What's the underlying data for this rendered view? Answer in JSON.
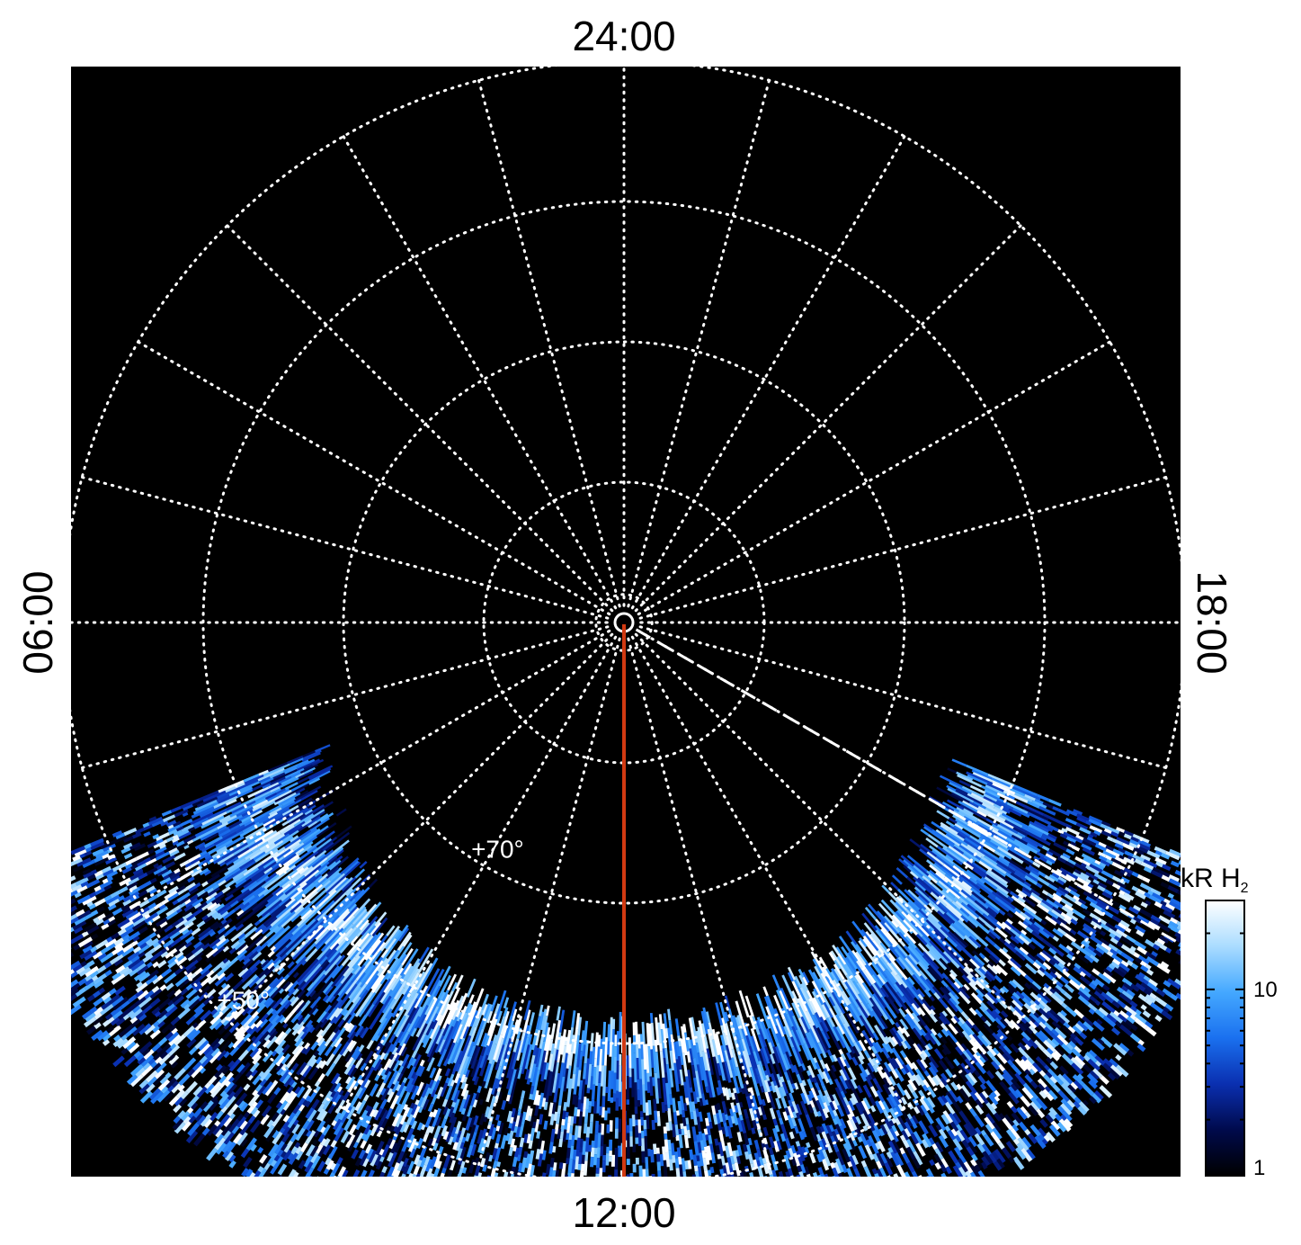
{
  "chart_data": {
    "type": "heatmap",
    "projection": "polar",
    "title": "",
    "local_time_labels": {
      "top": "24:00",
      "bottom": "12:00",
      "left": "06:00",
      "right": "18:00"
    },
    "latitude_rings_deg": [
      88,
      80,
      70,
      60,
      50
    ],
    "latitude_labels": [
      {
        "text": "+70°",
        "latitude": 70,
        "local_time_hours": 14.2
      },
      {
        "text": "+50°",
        "latitude": 50,
        "local_time_hours": 15.1
      }
    ],
    "meridian_step_hours": 1,
    "grid": true,
    "grid_color": "#ffffff",
    "background_color": "#000000",
    "reference_line": {
      "local_time_hours": 12,
      "from_latitude": 90,
      "to_latitude": 43,
      "color": "#d13a12"
    },
    "dashed_line": {
      "local_time_hours": 8,
      "from_latitude": 89,
      "to_latitude": 44,
      "color": "#ffffff"
    },
    "emission_features": [
      {
        "kind": "main_oval_band",
        "center_latitude": 61,
        "local_time_range_hours": [
          7.5,
          16.5
        ],
        "level_kR": 15
      },
      {
        "kind": "noise_field",
        "latitude_range": [
          43,
          57
        ],
        "local_time_range_hours": [
          7.5,
          16.5
        ],
        "level_kR": 4
      }
    ],
    "colorbar": {
      "title": "kR H",
      "title_subscript": "2",
      "scale": "log",
      "range": [
        1,
        30
      ],
      "ticks": [
        {
          "value": 1,
          "label": "1"
        },
        {
          "value": 10,
          "label": "10"
        }
      ],
      "colormap": [
        "#000000",
        "#000a4c",
        "#0a2fb0",
        "#1a70ef",
        "#44a8ff",
        "#aadcff",
        "#ffffff"
      ]
    }
  }
}
